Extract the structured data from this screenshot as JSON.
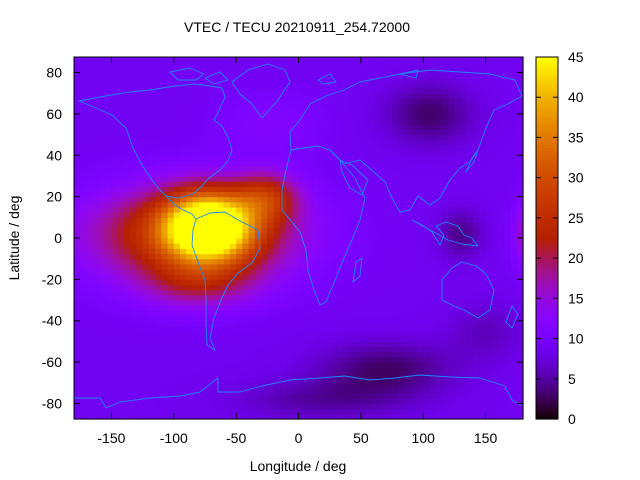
{
  "chart_data": {
    "type": "heatmap",
    "title": "VTEC / TECU 20210911_254.72000",
    "xlabel": "Longitude / deg",
    "ylabel": "Latitude / deg",
    "xlim": [
      -180,
      180
    ],
    "ylim": [
      -87.5,
      87.5
    ],
    "x_ticks": [
      -150,
      -100,
      -50,
      0,
      50,
      100,
      150
    ],
    "x_tick_labels": [
      "-150",
      "-100",
      "-50",
      "0",
      "50",
      "100",
      "150"
    ],
    "y_ticks": [
      80,
      60,
      40,
      20,
      0,
      -20,
      -40,
      -60,
      -80
    ],
    "y_tick_labels": [
      "80",
      "60",
      "40",
      "20",
      "0",
      "-20",
      "-40",
      "-60",
      "-80"
    ],
    "colorbar": {
      "range": [
        0,
        45
      ],
      "ticks": [
        0,
        5,
        10,
        15,
        20,
        25,
        30,
        35,
        40,
        45
      ],
      "tick_labels": [
        "0",
        "5",
        "10",
        "15",
        "20",
        "25",
        "30",
        "35",
        "40",
        "45"
      ],
      "colormap": "gnuplot-rgbformulae-7-5-15"
    },
    "grid_resolution": {
      "lon_step": 5,
      "lat_step": 2.5
    },
    "field": {
      "background": 9,
      "features": [
        {
          "name": "equatorial-anomaly-peak",
          "lon": -72,
          "lat": 6,
          "lon_width": 34,
          "lat_width": 16,
          "amplitude": 35
        },
        {
          "name": "equatorial-band",
          "lon": -85,
          "lat": 2,
          "lon_width": 78,
          "lat_width": 22,
          "amplitude": 20
        },
        {
          "name": "atlantic-lobe",
          "lon": -25,
          "lat": 20,
          "lon_width": 25,
          "lat_width": 12,
          "amplitude": 13
        },
        {
          "name": "southern-lobe",
          "lon": -80,
          "lat": -22,
          "lon_width": 45,
          "lat_width": 12,
          "amplitude": 8
        },
        {
          "name": "dateline-east-edge",
          "lon": 185,
          "lat": 2,
          "lon_width": 12,
          "lat_width": 16,
          "amplitude": 9
        },
        {
          "name": "north-atlantic-warm",
          "lon": -25,
          "lat": 55,
          "lon_width": 40,
          "lat_width": 14,
          "amplitude": 3
        },
        {
          "name": "siberia-low",
          "lon": 105,
          "lat": 60,
          "lon_width": 35,
          "lat_width": 15,
          "amplitude": -6
        },
        {
          "name": "indonesia-low",
          "lon": 130,
          "lat": 2,
          "lon_width": 18,
          "lat_width": 12,
          "amplitude": -5
        },
        {
          "name": "south-indian-low",
          "lon": 70,
          "lat": -63,
          "lon_width": 55,
          "lat_width": 13,
          "amplitude": -6
        },
        {
          "name": "antarctic-low",
          "lon": 20,
          "lat": -78,
          "lon_width": 70,
          "lat_width": 10,
          "amplitude": -4
        },
        {
          "name": "south-pacific-low",
          "lon": 150,
          "lat": -45,
          "lon_width": 30,
          "lat_width": 14,
          "amplitude": -3
        }
      ]
    }
  }
}
